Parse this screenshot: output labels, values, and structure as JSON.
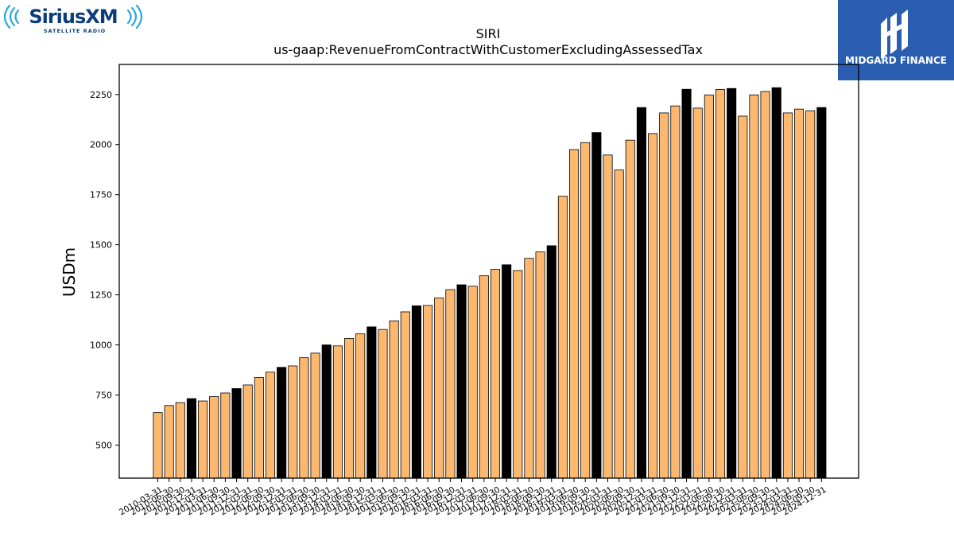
{
  "logos": {
    "left": {
      "text": "SiriusXM",
      "subtext": "SATELLITE RADIO",
      "color": "#0a3d7a",
      "accent": "#29a9e0"
    },
    "right": {
      "text": "MIDGARD FINANCE",
      "background": "#2a5db0"
    }
  },
  "colors": {
    "bar_regular": "#fdb870",
    "bar_highlight": "#000000",
    "edge": "#000000"
  },
  "chart_data": {
    "type": "bar",
    "title": "SIRI",
    "subtitle": "us-gaap:RevenueFromContractWithCustomerExcludingAssessedTax",
    "xlabel": "",
    "ylabel": "USDm",
    "ylim": [
      335,
      2400
    ],
    "yticks": [
      500,
      750,
      1000,
      1250,
      1500,
      1750,
      2000,
      2250
    ],
    "grid": false,
    "categories": [
      "2010-03-31",
      "2010-06-30",
      "2010-09-30",
      "2010-12-31",
      "2011-03-31",
      "2011-06-30",
      "2011-09-30",
      "2011-12-31",
      "2012-03-31",
      "2012-06-30",
      "2012-09-30",
      "2012-12-31",
      "2013-03-31",
      "2013-06-30",
      "2013-09-30",
      "2013-12-31",
      "2014-03-31",
      "2014-06-30",
      "2014-09-30",
      "2014-12-31",
      "2015-03-31",
      "2015-06-30",
      "2015-09-30",
      "2015-12-31",
      "2016-03-31",
      "2016-06-30",
      "2016-09-30",
      "2016-12-31",
      "2017-03-31",
      "2017-06-30",
      "2017-09-30",
      "2017-12-31",
      "2018-03-31",
      "2018-06-30",
      "2018-09-30",
      "2018-12-31",
      "2019-03-31",
      "2019-06-30",
      "2019-09-30",
      "2019-12-31",
      "2020-03-31",
      "2020-06-30",
      "2020-09-30",
      "2020-12-31",
      "2021-03-31",
      "2021-06-30",
      "2021-09-30",
      "2021-12-31",
      "2022-03-31",
      "2022-06-30",
      "2022-09-30",
      "2022-12-31",
      "2023-03-31",
      "2023-06-30",
      "2023-09-30",
      "2023-12-31",
      "2024-03-31",
      "2024-06-30",
      "2024-09-30",
      "2024-12-31"
    ],
    "values": [
      662,
      697,
      712,
      732,
      720,
      742,
      760,
      782,
      800,
      837,
      864,
      888,
      895,
      936,
      959,
      1000,
      995,
      1032,
      1055,
      1090,
      1077,
      1120,
      1165,
      1195,
      1197,
      1234,
      1276,
      1300,
      1293,
      1345,
      1377,
      1400,
      1371,
      1432,
      1464,
      1495,
      1742,
      1975,
      2010,
      2060,
      1948,
      1873,
      2022,
      2185,
      2055,
      2158,
      2193,
      2276,
      2182,
      2248,
      2275,
      2280,
      2142,
      2248,
      2265,
      2284,
      2158,
      2177,
      2169,
      2185
    ],
    "highlight_indices": [
      3,
      7,
      11,
      15,
      19,
      23,
      27,
      31,
      35,
      39,
      43,
      47,
      51,
      55,
      59
    ]
  }
}
